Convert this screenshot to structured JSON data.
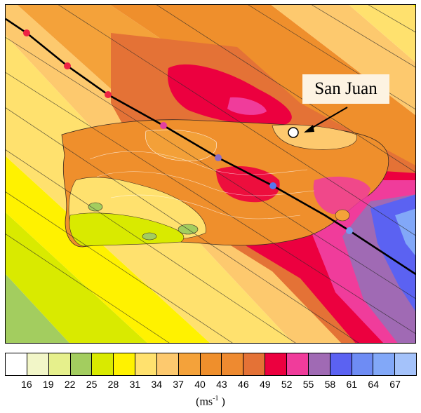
{
  "city": {
    "name": "San Juan"
  },
  "legend": {
    "colors": [
      "#ffffff",
      "#f2f6c8",
      "#e6f08c",
      "#a3cd5f",
      "#d9ea00",
      "#fff200",
      "#ffe16e",
      "#fdc96e",
      "#f4a23a",
      "#ef8f2c",
      "#ee8a30",
      "#e47236",
      "#ec003f",
      "#f03c9b",
      "#a06ab4",
      "#5b62f2",
      "#6e8cf4",
      "#82a8f8",
      "#a4c2fa"
    ],
    "ticks": [
      "16",
      "19",
      "22",
      "25",
      "28",
      "31",
      "34",
      "37",
      "40",
      "43",
      "46",
      "49",
      "52",
      "55",
      "58",
      "61",
      "64",
      "67"
    ],
    "units_base": "(ms",
    "units_exp": "-1",
    "units_close": " )"
  },
  "track": {
    "marker_colors": [
      "#ee2244",
      "#ee2244",
      "#ee2244",
      "#e23fa0",
      "#8a6cc4",
      "#5577ee",
      "#7799ee"
    ]
  }
}
